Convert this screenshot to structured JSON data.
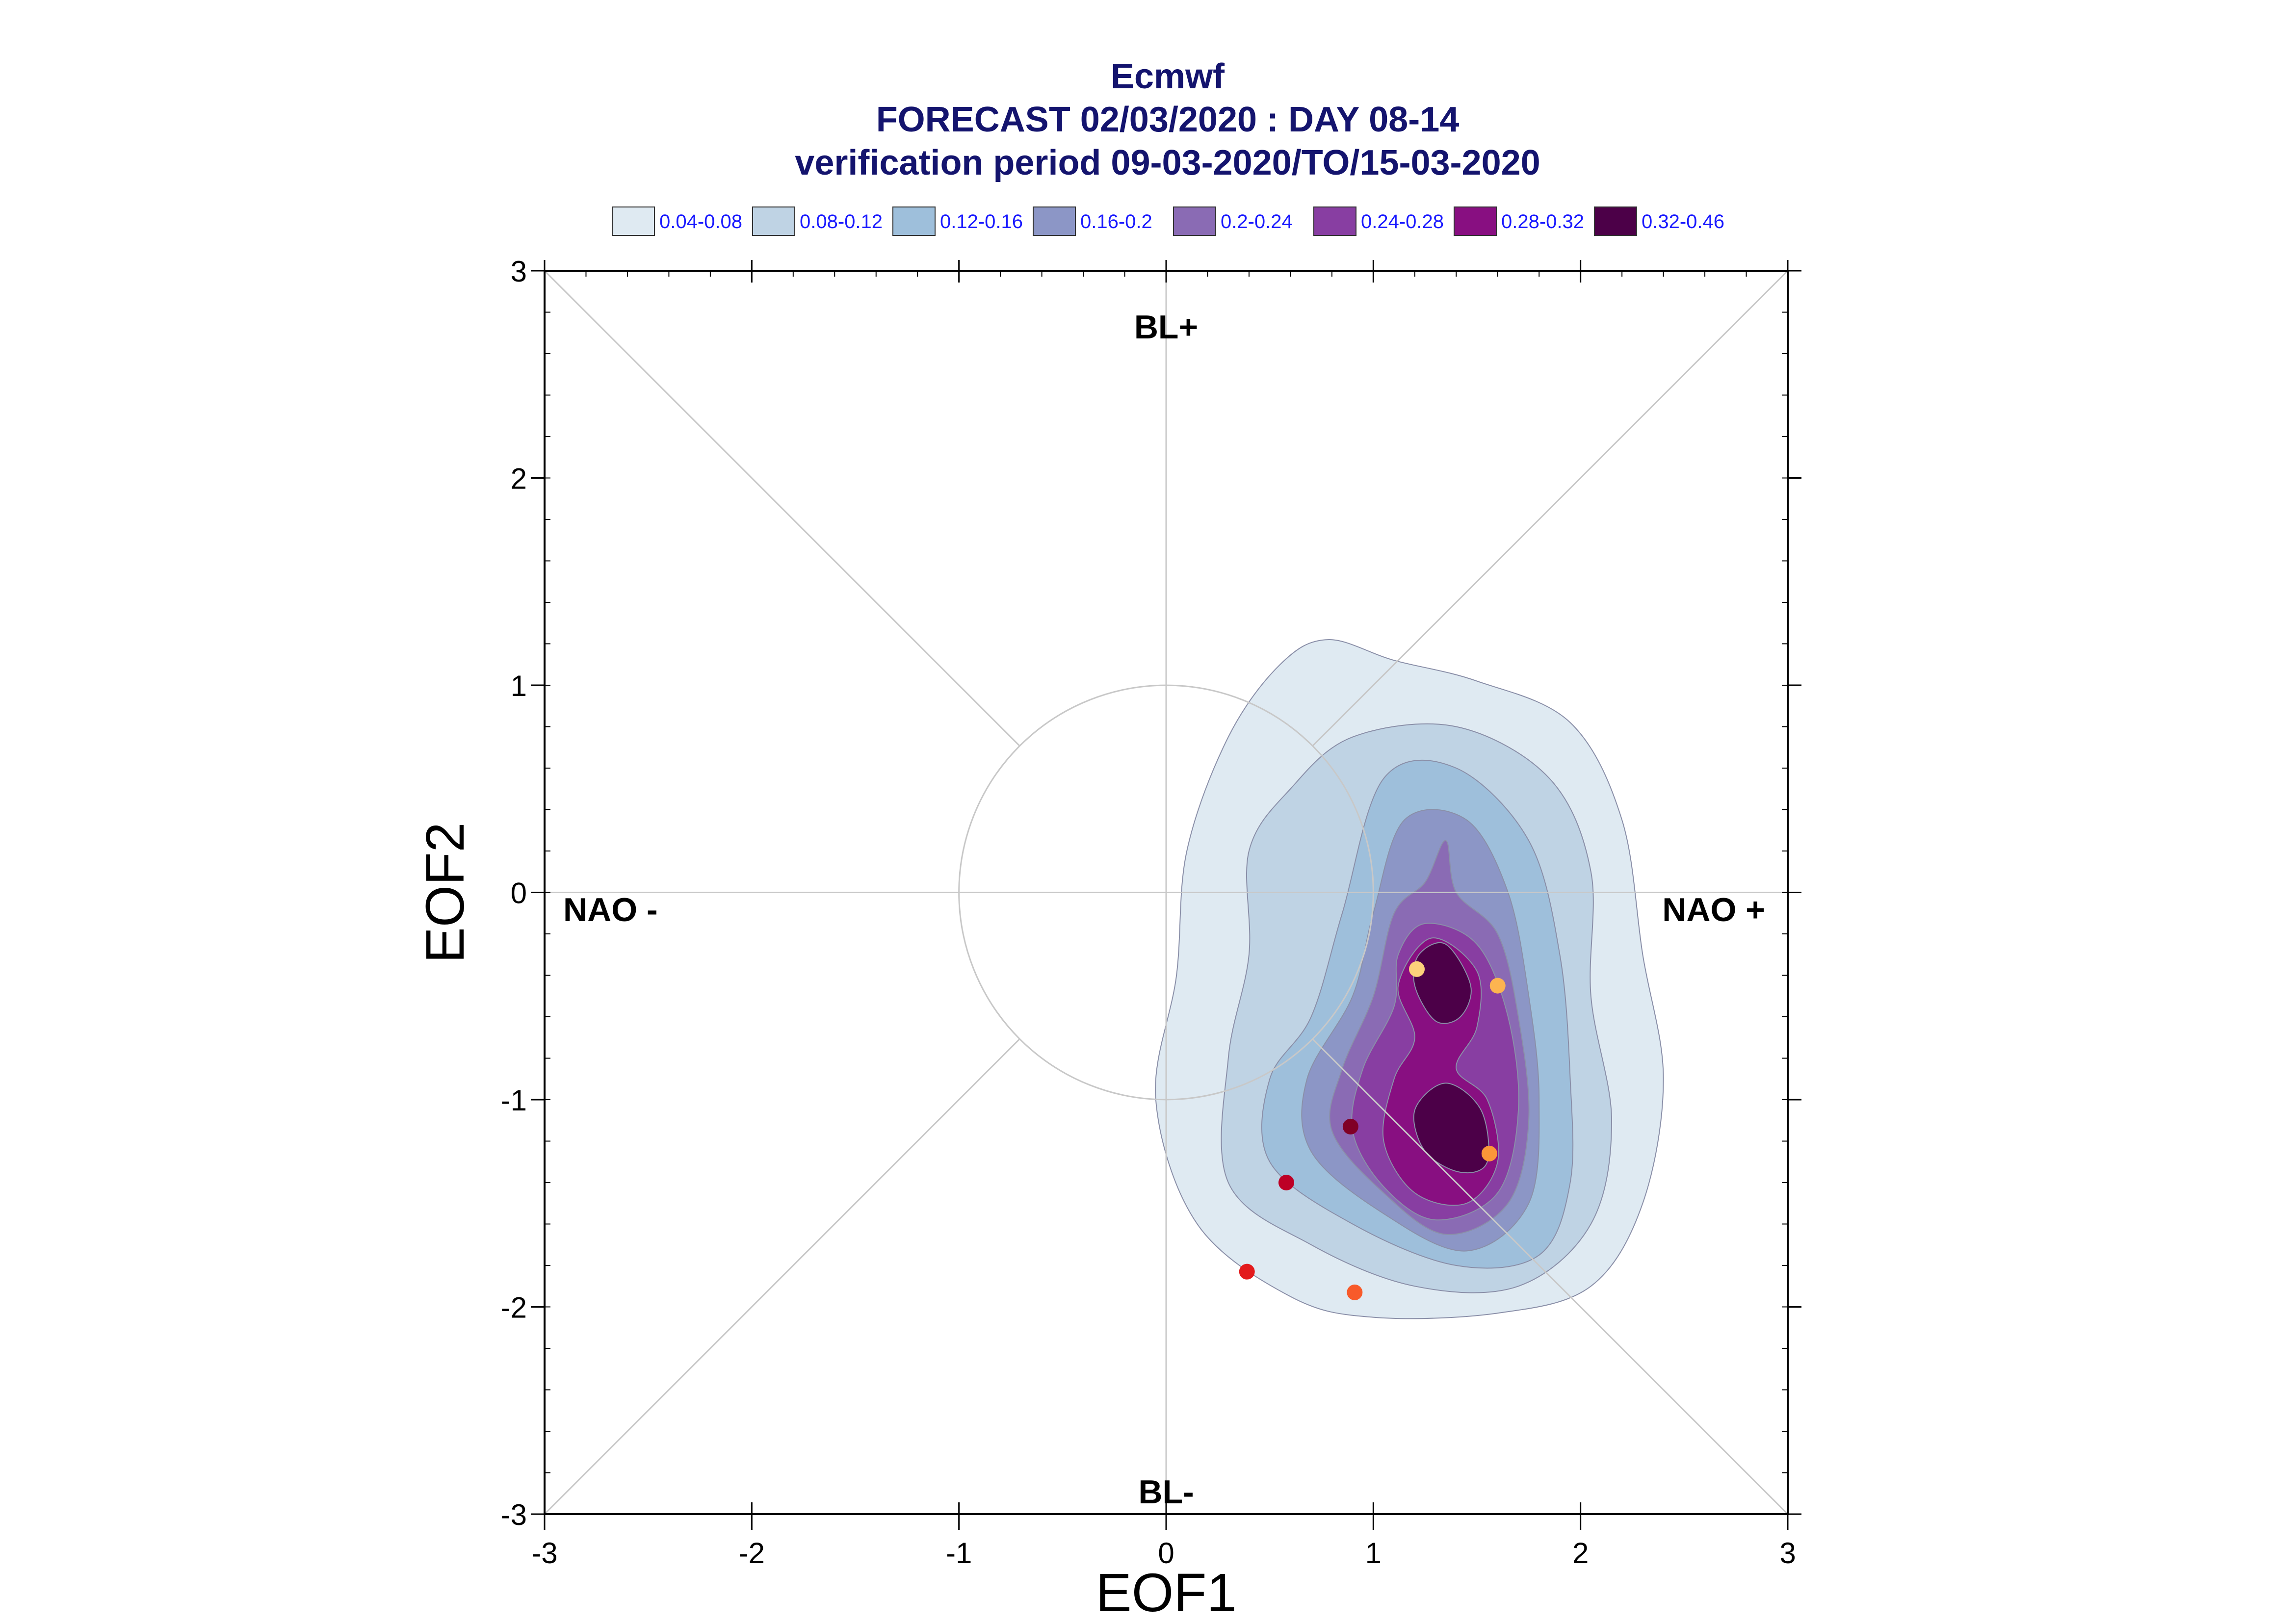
{
  "chart_data": {
    "type": "contour",
    "title_lines": [
      "Ecmwf",
      "FORECAST 02/03/2020 : DAY 08-14",
      "verification period 09-03-2020/TO/15-03-2020"
    ],
    "xlabel": "EOF1",
    "ylabel": "EOF2",
    "xlim": [
      -3,
      3
    ],
    "ylim": [
      -3,
      3
    ],
    "xticks": [
      "-3",
      "-2",
      "-1",
      "0",
      "1",
      "2",
      "3"
    ],
    "yticks": [
      "-3",
      "-2",
      "-1",
      "0",
      "1",
      "2",
      "3"
    ],
    "regime_labels": {
      "top": "BL+",
      "bottom": "BL-",
      "left": "NAO -",
      "right": "NAO +"
    },
    "unit_circle_radius": 1,
    "legend": [
      {
        "label": "0.04-0.08",
        "color": "#dfeaf2"
      },
      {
        "label": "0.08-0.12",
        "color": "#bfd3e4"
      },
      {
        "label": "0.12-0.16",
        "color": "#9ebfdb"
      },
      {
        "label": "0.16-0.2",
        "color": "#8c96c6"
      },
      {
        "label": "0.2-0.24",
        "color": "#8a6bb4"
      },
      {
        "label": "0.24-0.28",
        "color": "#883ea2"
      },
      {
        "label": "0.28-0.32",
        "color": "#880f81"
      },
      {
        "label": "0.32-0.46",
        "color": "#4c0048"
      }
    ],
    "contours": [
      {
        "level": "0.04-0.08",
        "points": [
          [
            0.78,
            1.22
          ],
          [
            1.1,
            1.12
          ],
          [
            1.5,
            1.02
          ],
          [
            1.95,
            0.82
          ],
          [
            2.2,
            0.35
          ],
          [
            2.3,
            -0.3
          ],
          [
            2.4,
            -0.9
          ],
          [
            2.3,
            -1.5
          ],
          [
            2.05,
            -1.9
          ],
          [
            1.6,
            -2.03
          ],
          [
            1.0,
            -2.05
          ],
          [
            0.6,
            -1.95
          ],
          [
            0.15,
            -1.6
          ],
          [
            -0.05,
            -1.0
          ],
          [
            0.05,
            -0.4
          ],
          [
            0.1,
            0.2
          ],
          [
            0.3,
            0.75
          ],
          [
            0.55,
            1.1
          ]
        ]
      },
      {
        "level": "0.08-0.12",
        "points": [
          [
            0.9,
            0.75
          ],
          [
            1.4,
            0.8
          ],
          [
            1.85,
            0.55
          ],
          [
            2.05,
            0.1
          ],
          [
            2.05,
            -0.5
          ],
          [
            2.15,
            -1.1
          ],
          [
            2.05,
            -1.6
          ],
          [
            1.7,
            -1.9
          ],
          [
            1.2,
            -1.9
          ],
          [
            0.7,
            -1.7
          ],
          [
            0.3,
            -1.4
          ],
          [
            0.3,
            -0.8
          ],
          [
            0.4,
            -0.3
          ],
          [
            0.4,
            0.2
          ],
          [
            0.6,
            0.5
          ]
        ]
      },
      {
        "level": "0.12-0.16",
        "points": [
          [
            1.05,
            0.55
          ],
          [
            1.4,
            0.6
          ],
          [
            1.75,
            0.25
          ],
          [
            1.9,
            -0.3
          ],
          [
            1.95,
            -0.9
          ],
          [
            1.95,
            -1.4
          ],
          [
            1.8,
            -1.75
          ],
          [
            1.4,
            -1.8
          ],
          [
            0.9,
            -1.6
          ],
          [
            0.5,
            -1.3
          ],
          [
            0.5,
            -0.9
          ],
          [
            0.7,
            -0.6
          ],
          [
            0.85,
            -0.1
          ]
        ]
      },
      {
        "level": "0.16-0.2",
        "points": [
          [
            1.15,
            0.35
          ],
          [
            1.45,
            0.35
          ],
          [
            1.65,
            0.0
          ],
          [
            1.75,
            -0.5
          ],
          [
            1.8,
            -1.0
          ],
          [
            1.75,
            -1.5
          ],
          [
            1.45,
            -1.73
          ],
          [
            1.05,
            -1.55
          ],
          [
            0.7,
            -1.25
          ],
          [
            0.68,
            -0.9
          ],
          [
            0.9,
            -0.5
          ],
          [
            1.0,
            -0.1
          ]
        ]
      },
      {
        "level": "0.2-0.24",
        "points": [
          [
            1.35,
            0.25
          ],
          [
            1.4,
            0.0
          ],
          [
            1.6,
            -0.2
          ],
          [
            1.7,
            -0.6
          ],
          [
            1.75,
            -1.1
          ],
          [
            1.65,
            -1.5
          ],
          [
            1.35,
            -1.65
          ],
          [
            1.05,
            -1.45
          ],
          [
            0.8,
            -1.15
          ],
          [
            0.85,
            -0.85
          ],
          [
            1.0,
            -0.5
          ],
          [
            1.1,
            -0.1
          ],
          [
            1.25,
            0.05
          ]
        ]
      },
      {
        "level": "0.24-0.28",
        "points": [
          [
            1.25,
            -0.15
          ],
          [
            1.5,
            -0.25
          ],
          [
            1.65,
            -0.6
          ],
          [
            1.7,
            -1.05
          ],
          [
            1.6,
            -1.45
          ],
          [
            1.3,
            -1.58
          ],
          [
            1.05,
            -1.42
          ],
          [
            0.9,
            -1.15
          ],
          [
            0.95,
            -0.85
          ],
          [
            1.1,
            -0.55
          ],
          [
            1.12,
            -0.3
          ]
        ]
      },
      {
        "level": "0.28-0.32",
        "points": [
          [
            1.28,
            -0.22
          ],
          [
            1.5,
            -0.38
          ],
          [
            1.5,
            -0.65
          ],
          [
            1.4,
            -0.85
          ],
          [
            1.55,
            -1.0
          ],
          [
            1.6,
            -1.3
          ],
          [
            1.45,
            -1.5
          ],
          [
            1.2,
            -1.45
          ],
          [
            1.05,
            -1.2
          ],
          [
            1.1,
            -0.9
          ],
          [
            1.2,
            -0.7
          ],
          [
            1.12,
            -0.45
          ]
        ]
      },
      {
        "level": "0.32-0.46",
        "points": [
          [
            1.35,
            -0.25
          ],
          [
            1.47,
            -0.45
          ],
          [
            1.42,
            -0.6
          ],
          [
            1.3,
            -0.62
          ],
          [
            1.2,
            -0.45
          ],
          [
            1.22,
            -0.3
          ]
        ]
      },
      {
        "level": "0.32-0.46",
        "points": [
          [
            1.35,
            -0.92
          ],
          [
            1.52,
            -1.05
          ],
          [
            1.55,
            -1.3
          ],
          [
            1.42,
            -1.35
          ],
          [
            1.25,
            -1.25
          ],
          [
            1.2,
            -1.05
          ]
        ]
      }
    ],
    "points": [
      {
        "x": 1.21,
        "y": -0.37,
        "color": "#fdd17b"
      },
      {
        "x": 1.6,
        "y": -0.45,
        "color": "#fdb450"
      },
      {
        "x": 1.56,
        "y": -1.26,
        "color": "#fb9738"
      },
      {
        "x": 0.89,
        "y": -1.13,
        "color": "#800026"
      },
      {
        "x": 0.58,
        "y": -1.4,
        "color": "#bd0026"
      },
      {
        "x": 0.39,
        "y": -1.83,
        "color": "#e31a1c"
      },
      {
        "x": 0.91,
        "y": -1.93,
        "color": "#f85a2a"
      }
    ]
  }
}
